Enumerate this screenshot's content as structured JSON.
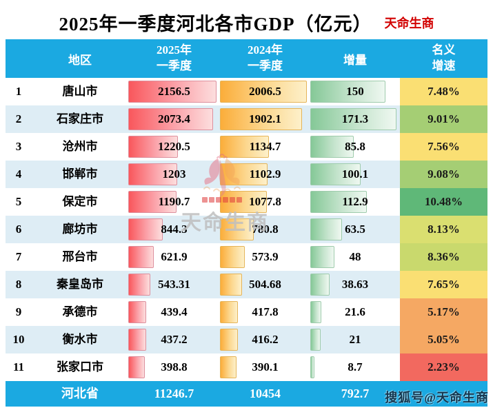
{
  "title": "2025年一季度河北各市GDP（亿元）",
  "brand": "天命生商",
  "colors": {
    "header_bg": "#1ba9e1",
    "footer_bg": "#1ba9e1",
    "row_alt_bg": "#deedf5",
    "bar_red": "#f9575c",
    "bar_orange": "#fbad3a",
    "bar_green": "#85c897",
    "brand_red": "#d20000"
  },
  "header": {
    "region": "地区",
    "y2025_line1": "2025年",
    "y2025_line2": "一季度",
    "y2024_line1": "2024年",
    "y2024_line2": "一季度",
    "increment": "增量",
    "growth_line1": "名义",
    "growth_line2": "增速"
  },
  "watermark": {
    "center_text": "天命生商",
    "sohu_text": "搜狐号@天命生商"
  },
  "chart_data": {
    "type": "table",
    "title": "2025年一季度河北各市GDP（亿元）",
    "columns": [
      "地区",
      "2025年一季度",
      "2024年一季度",
      "增量",
      "名义增速"
    ],
    "rows": [
      {
        "rank": 1,
        "city": "唐山市",
        "gdp_2025_q1": 2156.5,
        "gdp_2024_q1": 2006.5,
        "increment": 150,
        "nominal_growth": "7.48%",
        "growth_color": "#fadf73"
      },
      {
        "rank": 2,
        "city": "石家庄市",
        "gdp_2025_q1": 2073.4,
        "gdp_2024_q1": 1902.1,
        "increment": 171.3,
        "nominal_growth": "9.01%",
        "growth_color": "#a5ce74"
      },
      {
        "rank": 3,
        "city": "沧州市",
        "gdp_2025_q1": 1220.5,
        "gdp_2024_q1": 1134.7,
        "increment": 85.8,
        "nominal_growth": "7.56%",
        "growth_color": "#fadf73"
      },
      {
        "rank": 4,
        "city": "邯郸市",
        "gdp_2025_q1": 1203,
        "gdp_2024_q1": 1102.9,
        "increment": 100.1,
        "nominal_growth": "9.08%",
        "growth_color": "#a5ce74"
      },
      {
        "rank": 5,
        "city": "保定市",
        "gdp_2025_q1": 1190.7,
        "gdp_2024_q1": 1077.8,
        "increment": 112.9,
        "nominal_growth": "10.48%",
        "growth_color": "#5fb878"
      },
      {
        "rank": 6,
        "city": "廊坊市",
        "gdp_2025_q1": 844.3,
        "gdp_2024_q1": 780.8,
        "increment": 63.5,
        "nominal_growth": "8.13%",
        "growth_color": "#dadf70"
      },
      {
        "rank": 7,
        "city": "邢台市",
        "gdp_2025_q1": 621.9,
        "gdp_2024_q1": 573.9,
        "increment": 48,
        "nominal_growth": "8.36%",
        "growth_color": "#c9d96d"
      },
      {
        "rank": 8,
        "city": "秦皇岛市",
        "gdp_2025_q1": 543.31,
        "gdp_2024_q1": 504.68,
        "increment": 38.63,
        "nominal_growth": "7.65%",
        "growth_color": "#fadf73"
      },
      {
        "rank": 9,
        "city": "承德市",
        "gdp_2025_q1": 439.4,
        "gdp_2024_q1": 417.8,
        "increment": 21.6,
        "nominal_growth": "5.17%",
        "growth_color": "#f5a863"
      },
      {
        "rank": 10,
        "city": "衡水市",
        "gdp_2025_q1": 437.2,
        "gdp_2024_q1": 416.2,
        "increment": 21,
        "nominal_growth": "5.05%",
        "growth_color": "#f5a863"
      },
      {
        "rank": 11,
        "city": "张家口市",
        "gdp_2025_q1": 398.8,
        "gdp_2024_q1": 390.1,
        "increment": 8.7,
        "nominal_growth": "2.23%",
        "growth_color": "#f2695f"
      }
    ],
    "total_row": {
      "city": "河北省",
      "gdp_2025_q1": 11246.7,
      "gdp_2024_q1": 10454,
      "increment": 792.7
    }
  }
}
